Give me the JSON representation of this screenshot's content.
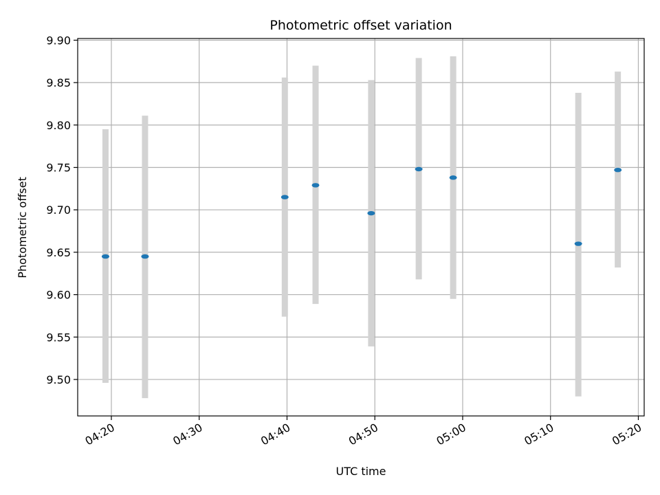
{
  "chart_data": {
    "type": "scatter",
    "title": "Photometric offset variation",
    "xlabel": "UTC time",
    "ylabel": "Photometric offset",
    "x_unit": "HH:MM UTC",
    "xlim": [
      "04:16:10",
      "05:20:40"
    ],
    "ylim": [
      9.457,
      9.902
    ],
    "xticks": [
      "04:20",
      "04:30",
      "04:40",
      "04:50",
      "05:00",
      "05:10",
      "05:20"
    ],
    "yticks": [
      "9.50",
      "9.55",
      "9.60",
      "9.65",
      "9.70",
      "9.75",
      "9.80",
      "9.85",
      "9.90"
    ],
    "grid": true,
    "legend": "none",
    "x": [
      "04:19:20",
      "04:23:50",
      "04:39:45",
      "04:43:15",
      "04:49:35",
      "04:55:00",
      "04:58:55",
      "05:13:10",
      "05:17:40"
    ],
    "y": [
      9.645,
      9.645,
      9.715,
      9.729,
      9.696,
      9.748,
      9.738,
      9.66,
      9.747
    ],
    "yerr_low": [
      9.496,
      9.478,
      9.574,
      9.589,
      9.539,
      9.618,
      9.595,
      9.48,
      9.632
    ],
    "yerr_high": [
      9.795,
      9.811,
      9.856,
      9.87,
      9.853,
      9.879,
      9.881,
      9.838,
      9.863
    ],
    "colors": {
      "point": "#1f77b4",
      "errorbar": "#d3d3d3",
      "grid": "#b0b0b0",
      "axes": "#000000"
    }
  }
}
